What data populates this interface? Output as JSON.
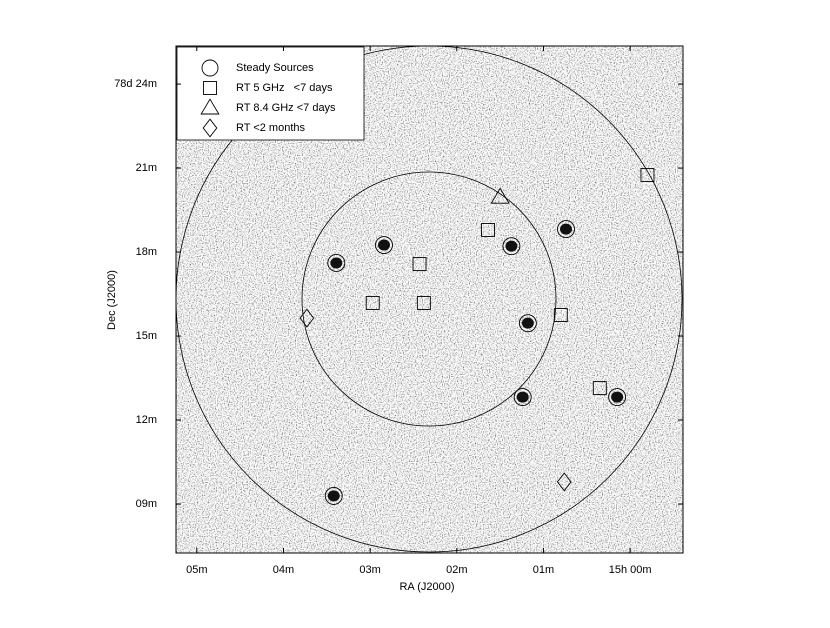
{
  "chart_data": {
    "type": "scatter",
    "xlabel": "RA (J2000)",
    "ylabel": "Dec (J2000)",
    "xlim": [
      5.24,
      -0.61
    ],
    "ylim": [
      7.25,
      25.36
    ],
    "xticks": [
      {
        "value": 5,
        "label": "05m"
      },
      {
        "value": 4,
        "label": "04m"
      },
      {
        "value": 3,
        "label": "03m"
      },
      {
        "value": 2,
        "label": "02m"
      },
      {
        "value": 1,
        "label": "01m"
      },
      {
        "value": 0,
        "label": "15h 00m"
      }
    ],
    "yticks": [
      {
        "value": 9,
        "label": "09m"
      },
      {
        "value": 12,
        "label": "12m"
      },
      {
        "value": 15,
        "label": "15m"
      },
      {
        "value": 18,
        "label": "18m"
      },
      {
        "value": 21,
        "label": "21m"
      },
      {
        "value": 24,
        "label": "78d 24m"
      }
    ],
    "legend": "upper left",
    "series": [
      {
        "name": "Steady Sources",
        "marker": "circle",
        "color": "#000000",
        "x": [
          3.39,
          2.84,
          1.37,
          0.74,
          1.18,
          1.24,
          0.15,
          3.42
        ],
        "values": [
          17.61,
          18.25,
          18.21,
          18.82,
          15.46,
          12.82,
          12.82,
          9.29
        ]
      },
      {
        "name": "RT 5 GHz   <7 days",
        "marker": "square",
        "color": "#000000",
        "x": [
          -0.2,
          1.64,
          2.43,
          2.97,
          2.38,
          0.8,
          0.35
        ],
        "values": [
          20.75,
          18.79,
          17.57,
          16.18,
          16.18,
          15.75,
          13.14
        ]
      },
      {
        "name": "RT 8.4 GHz <7 days",
        "marker": "triangle",
        "color": "#000000",
        "x": [
          1.5
        ],
        "values": [
          19.96
        ]
      },
      {
        "name": "RT <2 months",
        "marker": "diamond",
        "color": "#000000",
        "x": [
          3.73,
          0.76
        ],
        "values": [
          15.64,
          9.79
        ]
      }
    ]
  }
}
